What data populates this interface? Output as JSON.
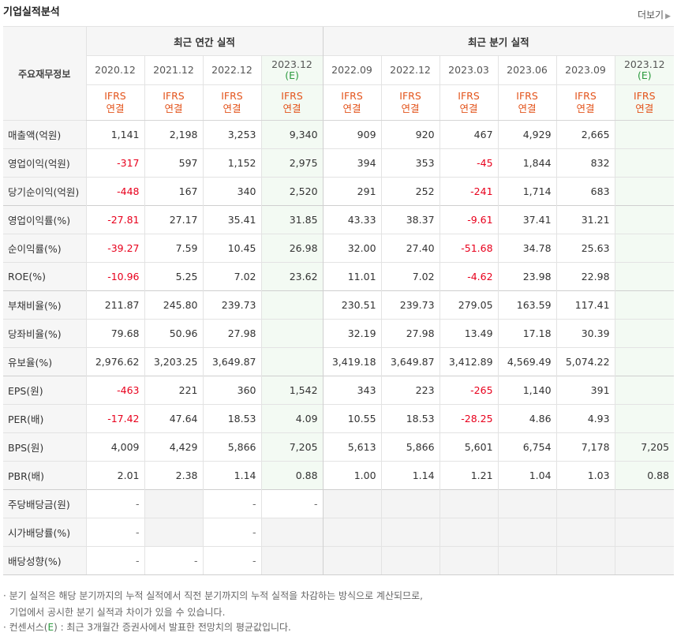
{
  "title": "기업실적분석",
  "more_label": "더보기",
  "row_header": "주요재무정보",
  "group_annual": "최근 연간 실적",
  "group_quarter": "최근 분기 실적",
  "years": [
    {
      "label": "2020.12",
      "est": ""
    },
    {
      "label": "2021.12",
      "est": ""
    },
    {
      "label": "2022.12",
      "est": ""
    },
    {
      "label": "2023.12",
      "est": "(E)"
    },
    {
      "label": "2022.09",
      "est": ""
    },
    {
      "label": "2022.12",
      "est": ""
    },
    {
      "label": "2023.03",
      "est": ""
    },
    {
      "label": "2023.06",
      "est": ""
    },
    {
      "label": "2023.09",
      "est": ""
    },
    {
      "label": "2023.12",
      "est": "(E)"
    }
  ],
  "ifrs_top": "IFRS",
  "ifrs_bottom": "연결",
  "rows": [
    {
      "label": "매출액(억원)",
      "values": [
        "1,141",
        "2,198",
        "3,253",
        "9,340",
        "909",
        "920",
        "467",
        "4,929",
        "2,665",
        ""
      ]
    },
    {
      "label": "영업이익(억원)",
      "values": [
        "-317",
        "597",
        "1,152",
        "2,975",
        "394",
        "353",
        "-45",
        "1,844",
        "832",
        ""
      ]
    },
    {
      "label": "당기순이익(억원)",
      "values": [
        "-448",
        "167",
        "340",
        "2,520",
        "291",
        "252",
        "-241",
        "1,714",
        "683",
        ""
      ]
    },
    {
      "label": "영업이익률(%)",
      "values": [
        "-27.81",
        "27.17",
        "35.41",
        "31.85",
        "43.33",
        "38.37",
        "-9.61",
        "37.41",
        "31.21",
        ""
      ]
    },
    {
      "label": "순이익률(%)",
      "values": [
        "-39.27",
        "7.59",
        "10.45",
        "26.98",
        "32.00",
        "27.40",
        "-51.68",
        "34.78",
        "25.63",
        ""
      ]
    },
    {
      "label": "ROE(%)",
      "values": [
        "-10.96",
        "5.25",
        "7.02",
        "23.62",
        "11.01",
        "7.02",
        "-4.62",
        "23.98",
        "22.98",
        ""
      ]
    },
    {
      "label": "부채비율(%)",
      "values": [
        "211.87",
        "245.80",
        "239.73",
        "",
        "230.51",
        "239.73",
        "279.05",
        "163.59",
        "117.41",
        ""
      ]
    },
    {
      "label": "당좌비율(%)",
      "values": [
        "79.68",
        "50.96",
        "27.98",
        "",
        "32.19",
        "27.98",
        "13.49",
        "17.18",
        "30.39",
        ""
      ]
    },
    {
      "label": "유보율(%)",
      "values": [
        "2,976.62",
        "3,203.25",
        "3,649.87",
        "",
        "3,419.18",
        "3,649.87",
        "3,412.89",
        "4,569.49",
        "5,074.22",
        ""
      ]
    },
    {
      "label": "EPS(원)",
      "values": [
        "-463",
        "221",
        "360",
        "1,542",
        "343",
        "223",
        "-265",
        "1,140",
        "391",
        ""
      ]
    },
    {
      "label": "PER(배)",
      "values": [
        "-17.42",
        "47.64",
        "18.53",
        "4.09",
        "10.55",
        "18.53",
        "-28.25",
        "4.86",
        "4.93",
        ""
      ]
    },
    {
      "label": "BPS(원)",
      "values": [
        "4,009",
        "4,429",
        "5,866",
        "7,205",
        "5,613",
        "5,866",
        "5,601",
        "6,754",
        "7,178",
        "7,205"
      ]
    },
    {
      "label": "PBR(배)",
      "values": [
        "2.01",
        "2.38",
        "1.14",
        "0.88",
        "1.00",
        "1.14",
        "1.21",
        "1.04",
        "1.03",
        "0.88"
      ]
    },
    {
      "label": "주당배당금(원)",
      "values": [
        "-",
        "",
        "-",
        "-",
        "",
        "",
        "",
        "",
        "",
        ""
      ]
    },
    {
      "label": "시가배당률(%)",
      "values": [
        "-",
        "",
        "-",
        "",
        "",
        "",
        "",
        "",
        "",
        ""
      ]
    },
    {
      "label": "배당성향(%)",
      "values": [
        "-",
        "-",
        "-",
        "",
        "",
        "",
        "",
        "",
        "",
        ""
      ]
    }
  ],
  "notes": {
    "line1": "· 분기 실적은 해당 분기까지의 누적 실적에서 직전 분기까지의 누적 실적을 차감하는 방식으로 계산되므로,",
    "line2": "기업에서 공시한 분기 실적과 차이가 있을 수 있습니다.",
    "line3a": "· 컨센서스(",
    "line3e": "E",
    "line3b": ") : 최근 3개월간 증권사에서 발표한 전망치의 평균값입니다."
  },
  "colors": {
    "negative": "#e8001c",
    "ifrs": "#e3541c",
    "estimate": "#2a9a3d"
  }
}
